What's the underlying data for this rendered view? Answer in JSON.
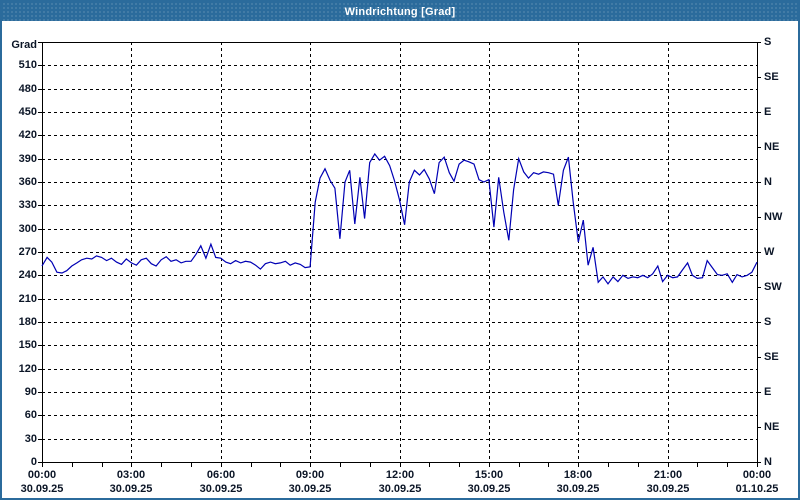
{
  "window": {
    "title": "Windrichtung [Grad]"
  },
  "colors": {
    "titlebar_bg": "#2b6b9c",
    "titlebar_text": "#ffffff",
    "window_border": "#2b6b9c",
    "plot_background": "#ffffff",
    "frame": "#000000",
    "grid": "#000000",
    "label_text": "#0b1526",
    "series_line": "#0000b4"
  },
  "chart_data": {
    "type": "line",
    "title": "Windrichtung [Grad]",
    "unit_label": "Grad",
    "ylim": [
      0,
      540
    ],
    "xlim_hours": [
      0,
      24
    ],
    "grid": {
      "horizontal_step_deg": 30,
      "vertical_step_hours": 3,
      "style": "dashed",
      "minor_x_tick_hours": 1
    },
    "y_axis_left": {
      "tick_step": 30,
      "labels_bottom_to_top": [
        "0",
        "30",
        "60",
        "90",
        "120",
        "150",
        "180",
        "210",
        "240",
        "270",
        "300",
        "330",
        "360",
        "390",
        "420",
        "450",
        "480",
        "510"
      ]
    },
    "y_axis_right": {
      "tick_step_deg": 45,
      "labels_bottom_to_top": [
        "N",
        "NE",
        "E",
        "SE",
        "S",
        "SW",
        "W",
        "NW",
        "N",
        "NE",
        "E",
        "SE",
        "S"
      ]
    },
    "x_axis": {
      "major_labels": [
        {
          "time": "00:00",
          "date": "30.09.25"
        },
        {
          "time": "03:00",
          "date": "30.09.25"
        },
        {
          "time": "06:00",
          "date": "30.09.25"
        },
        {
          "time": "09:00",
          "date": "30.09.25"
        },
        {
          "time": "12:00",
          "date": "30.09.25"
        },
        {
          "time": "15:00",
          "date": "30.09.25"
        },
        {
          "time": "18:00",
          "date": "30.09.25"
        },
        {
          "time": "21:00",
          "date": "30.09.25"
        },
        {
          "time": "00:00",
          "date": "01.10.25"
        }
      ]
    },
    "series": [
      {
        "name": "Windrichtung",
        "color": "#0000b4",
        "points_hour_deg": [
          [
            0.0,
            252
          ],
          [
            0.17,
            263
          ],
          [
            0.33,
            257
          ],
          [
            0.5,
            244
          ],
          [
            0.67,
            243
          ],
          [
            0.83,
            246
          ],
          [
            1.0,
            252
          ],
          [
            1.17,
            256
          ],
          [
            1.33,
            260
          ],
          [
            1.5,
            262
          ],
          [
            1.67,
            261
          ],
          [
            1.83,
            265
          ],
          [
            2.0,
            263
          ],
          [
            2.17,
            259
          ],
          [
            2.33,
            262
          ],
          [
            2.5,
            257
          ],
          [
            2.67,
            254
          ],
          [
            2.83,
            261
          ],
          [
            3.0,
            256
          ],
          [
            3.17,
            253
          ],
          [
            3.33,
            260
          ],
          [
            3.5,
            262
          ],
          [
            3.67,
            255
          ],
          [
            3.83,
            252
          ],
          [
            4.0,
            260
          ],
          [
            4.17,
            264
          ],
          [
            4.33,
            258
          ],
          [
            4.5,
            260
          ],
          [
            4.67,
            256
          ],
          [
            4.83,
            258
          ],
          [
            5.0,
            258
          ],
          [
            5.17,
            267
          ],
          [
            5.33,
            278
          ],
          [
            5.5,
            262
          ],
          [
            5.67,
            280
          ],
          [
            5.83,
            263
          ],
          [
            6.0,
            262
          ],
          [
            6.17,
            257
          ],
          [
            6.33,
            255
          ],
          [
            6.5,
            259
          ],
          [
            6.67,
            256
          ],
          [
            6.83,
            258
          ],
          [
            7.0,
            257
          ],
          [
            7.17,
            253
          ],
          [
            7.33,
            248
          ],
          [
            7.5,
            255
          ],
          [
            7.67,
            257
          ],
          [
            7.83,
            255
          ],
          [
            8.0,
            256
          ],
          [
            8.17,
            258
          ],
          [
            8.33,
            253
          ],
          [
            8.5,
            256
          ],
          [
            8.67,
            254
          ],
          [
            8.83,
            250
          ],
          [
            9.0,
            251
          ],
          [
            9.17,
            334
          ],
          [
            9.33,
            365
          ],
          [
            9.5,
            377
          ],
          [
            9.67,
            362
          ],
          [
            9.83,
            352
          ],
          [
            10.0,
            287
          ],
          [
            10.17,
            360
          ],
          [
            10.33,
            375
          ],
          [
            10.5,
            306
          ],
          [
            10.67,
            366
          ],
          [
            10.83,
            313
          ],
          [
            11.0,
            385
          ],
          [
            11.17,
            396
          ],
          [
            11.33,
            388
          ],
          [
            11.5,
            393
          ],
          [
            11.67,
            381
          ],
          [
            11.83,
            362
          ],
          [
            12.0,
            337
          ],
          [
            12.17,
            305
          ],
          [
            12.33,
            360
          ],
          [
            12.5,
            375
          ],
          [
            12.67,
            369
          ],
          [
            12.83,
            376
          ],
          [
            13.0,
            364
          ],
          [
            13.17,
            345
          ],
          [
            13.33,
            385
          ],
          [
            13.5,
            392
          ],
          [
            13.67,
            372
          ],
          [
            13.83,
            361
          ],
          [
            14.0,
            383
          ],
          [
            14.17,
            388
          ],
          [
            14.33,
            386
          ],
          [
            14.5,
            383
          ],
          [
            14.67,
            363
          ],
          [
            14.83,
            360
          ],
          [
            15.0,
            363
          ],
          [
            15.17,
            302
          ],
          [
            15.33,
            366
          ],
          [
            15.5,
            321
          ],
          [
            15.67,
            285
          ],
          [
            15.83,
            350
          ],
          [
            16.0,
            390
          ],
          [
            16.17,
            373
          ],
          [
            16.33,
            365
          ],
          [
            16.5,
            372
          ],
          [
            16.67,
            370
          ],
          [
            16.83,
            373
          ],
          [
            17.0,
            372
          ],
          [
            17.17,
            370
          ],
          [
            17.33,
            330
          ],
          [
            17.5,
            375
          ],
          [
            17.67,
            392
          ],
          [
            17.83,
            334
          ],
          [
            18.0,
            283
          ],
          [
            18.17,
            311
          ],
          [
            18.33,
            253
          ],
          [
            18.5,
            276
          ],
          [
            18.67,
            231
          ],
          [
            18.83,
            238
          ],
          [
            19.0,
            229
          ],
          [
            19.17,
            238
          ],
          [
            19.33,
            232
          ],
          [
            19.5,
            240
          ],
          [
            19.67,
            236
          ],
          [
            19.83,
            238
          ],
          [
            20.0,
            237
          ],
          [
            20.17,
            240
          ],
          [
            20.33,
            237
          ],
          [
            20.5,
            242
          ],
          [
            20.67,
            252
          ],
          [
            20.83,
            232
          ],
          [
            21.0,
            240
          ],
          [
            21.17,
            237
          ],
          [
            21.33,
            238
          ],
          [
            21.5,
            247
          ],
          [
            21.67,
            256
          ],
          [
            21.83,
            240
          ],
          [
            22.0,
            236
          ],
          [
            22.17,
            237
          ],
          [
            22.33,
            259
          ],
          [
            22.5,
            250
          ],
          [
            22.67,
            241
          ],
          [
            22.83,
            240
          ],
          [
            23.0,
            242
          ],
          [
            23.17,
            231
          ],
          [
            23.33,
            241
          ],
          [
            23.5,
            238
          ],
          [
            23.67,
            240
          ],
          [
            23.83,
            244
          ],
          [
            24.0,
            257
          ]
        ]
      }
    ]
  }
}
